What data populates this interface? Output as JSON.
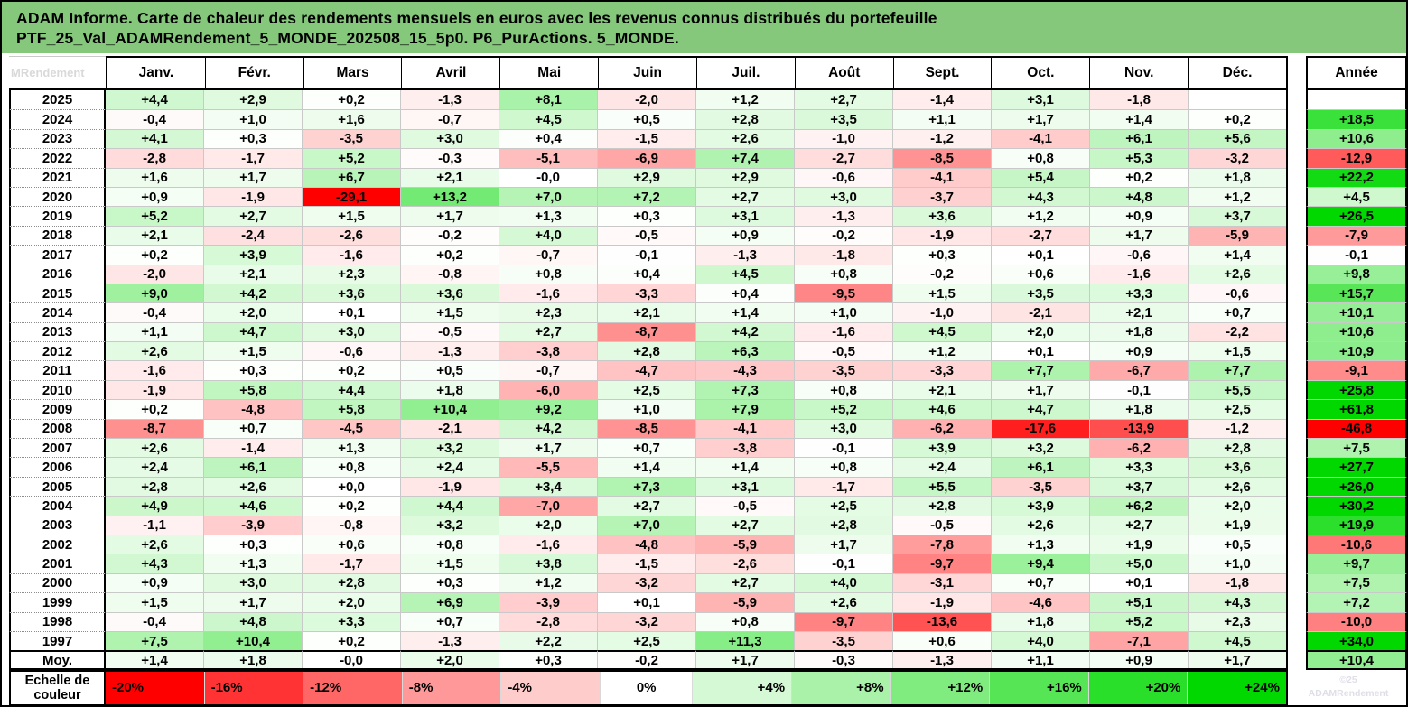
{
  "title": {
    "line1": "ADAM Informe. Carte de chaleur des rendements mensuels en euros avec les revenus connus distribués du portefeuille",
    "line2": "PTF_25_Val_ADAMRendement_5_MONDE_202508_15_5p0. P6_PurActions. 5_MONDE.",
    "bg_color": "#85c87c"
  },
  "corner_watermark": "MRendement",
  "footer_watermark": {
    "line1": "©25",
    "line2": "ADAMRendement"
  },
  "chart_data": {
    "type": "heatmap",
    "title": "ADAM Informe. Carte de chaleur des rendements mensuels en euros avec les revenus connus distribués du portefeuille PTF_25_Val_ADAMRendement_5_MONDE_202508_15_5p0. P6_PurActions. 5_MONDE.",
    "unit": "%",
    "columns": [
      "Janv.",
      "Févr.",
      "Mars",
      "Avril",
      "Mai",
      "Juin",
      "Juil.",
      "Août",
      "Sept.",
      "Oct.",
      "Nov.",
      "Déc."
    ],
    "annual_label": "Année",
    "rows": [
      {
        "label": "2025",
        "values": [
          "+4,4",
          "+2,9",
          "+0,2",
          "-1,3",
          "+8,1",
          "-2,0",
          "+1,2",
          "+2,7",
          "-1,4",
          "+3,1",
          "-1,8",
          ""
        ],
        "annual": ""
      },
      {
        "label": "2024",
        "values": [
          "-0,4",
          "+1,0",
          "+1,6",
          "-0,7",
          "+4,5",
          "+0,5",
          "+2,8",
          "+3,5",
          "+1,1",
          "+1,7",
          "+1,4",
          "+0,2"
        ],
        "annual": "+18,5"
      },
      {
        "label": "2023",
        "values": [
          "+4,1",
          "+0,3",
          "-3,5",
          "+3,0",
          "+0,4",
          "-1,5",
          "+2,6",
          "-1,0",
          "-1,2",
          "-4,1",
          "+6,1",
          "+5,6"
        ],
        "annual": "+10,6"
      },
      {
        "label": "2022",
        "values": [
          "-2,8",
          "-1,7",
          "+5,2",
          "-0,3",
          "-5,1",
          "-6,9",
          "+7,4",
          "-2,7",
          "-8,5",
          "+0,8",
          "+5,3",
          "-3,2"
        ],
        "annual": "-12,9"
      },
      {
        "label": "2021",
        "values": [
          "+1,6",
          "+1,7",
          "+6,7",
          "+2,1",
          "-0,0",
          "+2,9",
          "+2,9",
          "-0,6",
          "-4,1",
          "+5,4",
          "+0,2",
          "+1,8"
        ],
        "annual": "+22,2"
      },
      {
        "label": "2020",
        "values": [
          "+0,9",
          "-1,9",
          "-29,1",
          "+13,2",
          "+7,0",
          "+7,2",
          "+2,7",
          "+3,0",
          "-3,7",
          "+4,3",
          "+4,8",
          "+1,2"
        ],
        "annual": "+4,5"
      },
      {
        "label": "2019",
        "values": [
          "+5,2",
          "+2,7",
          "+1,5",
          "+1,7",
          "+1,3",
          "+0,3",
          "+3,1",
          "-1,3",
          "+3,6",
          "+1,2",
          "+0,9",
          "+3,7"
        ],
        "annual": "+26,5"
      },
      {
        "label": "2018",
        "values": [
          "+2,1",
          "-2,4",
          "-2,6",
          "-0,2",
          "+4,0",
          "-0,5",
          "+0,9",
          "-0,2",
          "-1,9",
          "-2,7",
          "+1,7",
          "-5,9"
        ],
        "annual": "-7,9"
      },
      {
        "label": "2017",
        "values": [
          "+0,2",
          "+3,9",
          "-1,6",
          "+0,2",
          "-0,7",
          "-0,1",
          "-1,3",
          "-1,8",
          "+0,3",
          "+0,1",
          "-0,6",
          "+1,4"
        ],
        "annual": "-0,1"
      },
      {
        "label": "2016",
        "values": [
          "-2,0",
          "+2,1",
          "+2,3",
          "-0,8",
          "+0,8",
          "+0,4",
          "+4,5",
          "+0,8",
          "-0,2",
          "+0,6",
          "-1,6",
          "+2,6"
        ],
        "annual": "+9,8"
      },
      {
        "label": "2015",
        "values": [
          "+9,0",
          "+4,2",
          "+3,6",
          "+3,6",
          "-1,6",
          "-3,3",
          "+0,4",
          "-9,5",
          "+1,5",
          "+3,5",
          "+3,3",
          "-0,6"
        ],
        "annual": "+15,7"
      },
      {
        "label": "2014",
        "values": [
          "-0,4",
          "+2,0",
          "+0,1",
          "+1,5",
          "+2,3",
          "+2,1",
          "+1,4",
          "+1,0",
          "-1,0",
          "-2,1",
          "+2,1",
          "+0,7"
        ],
        "annual": "+10,1"
      },
      {
        "label": "2013",
        "values": [
          "+1,1",
          "+4,7",
          "+3,0",
          "-0,5",
          "+2,7",
          "-8,7",
          "+4,2",
          "-1,6",
          "+4,5",
          "+2,0",
          "+1,8",
          "-2,2"
        ],
        "annual": "+10,6"
      },
      {
        "label": "2012",
        "values": [
          "+2,6",
          "+1,5",
          "-0,6",
          "-1,3",
          "-3,8",
          "+2,8",
          "+6,3",
          "-0,5",
          "+1,2",
          "+0,1",
          "+0,9",
          "+1,5"
        ],
        "annual": "+10,9"
      },
      {
        "label": "2011",
        "values": [
          "-1,6",
          "+0,3",
          "+0,2",
          "+0,5",
          "-0,7",
          "-4,7",
          "-4,3",
          "-3,5",
          "-3,3",
          "+7,7",
          "-6,7",
          "+7,7"
        ],
        "annual": "-9,1"
      },
      {
        "label": "2010",
        "values": [
          "-1,9",
          "+5,8",
          "+4,4",
          "+1,8",
          "-6,0",
          "+2,5",
          "+7,3",
          "+0,8",
          "+2,1",
          "+1,7",
          "-0,1",
          "+5,5"
        ],
        "annual": "+25,8"
      },
      {
        "label": "2009",
        "values": [
          "+0,2",
          "-4,8",
          "+5,8",
          "+10,4",
          "+9,2",
          "+1,0",
          "+7,9",
          "+5,2",
          "+4,6",
          "+4,7",
          "+1,8",
          "+2,5"
        ],
        "annual": "+61,8"
      },
      {
        "label": "2008",
        "values": [
          "-8,7",
          "+0,7",
          "-4,5",
          "-2,1",
          "+4,2",
          "-8,5",
          "-4,1",
          "+3,0",
          "-6,2",
          "-17,6",
          "-13,9",
          "-1,2"
        ],
        "annual": "-46,8"
      },
      {
        "label": "2007",
        "values": [
          "+2,6",
          "-1,4",
          "+1,3",
          "+3,2",
          "+1,7",
          "+0,7",
          "-3,8",
          "-0,1",
          "+3,9",
          "+3,2",
          "-6,2",
          "+2,8"
        ],
        "annual": "+7,5"
      },
      {
        "label": "2006",
        "values": [
          "+2,4",
          "+6,1",
          "+0,8",
          "+2,4",
          "-5,5",
          "+1,4",
          "+1,4",
          "+0,8",
          "+2,4",
          "+6,1",
          "+3,3",
          "+3,6"
        ],
        "annual": "+27,7"
      },
      {
        "label": "2005",
        "values": [
          "+2,8",
          "+2,6",
          "+0,0",
          "-1,9",
          "+3,4",
          "+7,3",
          "+3,1",
          "-1,7",
          "+5,5",
          "-3,5",
          "+3,7",
          "+2,6"
        ],
        "annual": "+26,0"
      },
      {
        "label": "2004",
        "values": [
          "+4,9",
          "+4,6",
          "+0,2",
          "+4,4",
          "-7,0",
          "+2,7",
          "-0,5",
          "+2,5",
          "+2,8",
          "+3,9",
          "+6,2",
          "+2,0"
        ],
        "annual": "+30,2"
      },
      {
        "label": "2003",
        "values": [
          "-1,1",
          "-3,9",
          "-0,8",
          "+3,2",
          "+2,0",
          "+7,0",
          "+2,7",
          "+2,8",
          "-0,5",
          "+2,6",
          "+2,7",
          "+1,9"
        ],
        "annual": "+19,9"
      },
      {
        "label": "2002",
        "values": [
          "+2,6",
          "+0,3",
          "+0,6",
          "+0,8",
          "-1,6",
          "-4,8",
          "-5,9",
          "+1,7",
          "-7,8",
          "+1,3",
          "+1,9",
          "+0,5"
        ],
        "annual": "-10,6"
      },
      {
        "label": "2001",
        "values": [
          "+4,3",
          "+1,3",
          "-1,7",
          "+1,5",
          "+3,8",
          "-1,5",
          "-2,6",
          "-0,1",
          "-9,7",
          "+9,4",
          "+5,0",
          "+1,0"
        ],
        "annual": "+9,7"
      },
      {
        "label": "2000",
        "values": [
          "+0,9",
          "+3,0",
          "+2,8",
          "+0,3",
          "+1,2",
          "-3,2",
          "+2,7",
          "+4,0",
          "-3,1",
          "+0,7",
          "+0,1",
          "-1,8"
        ],
        "annual": "+7,5"
      },
      {
        "label": "1999",
        "values": [
          "+1,5",
          "+1,7",
          "+2,0",
          "+6,9",
          "-3,9",
          "+0,1",
          "-5,9",
          "+2,6",
          "-1,9",
          "-4,6",
          "+5,1",
          "+4,3"
        ],
        "annual": "+7,2"
      },
      {
        "label": "1998",
        "values": [
          "-0,4",
          "+4,8",
          "+3,3",
          "+0,7",
          "-2,8",
          "-3,2",
          "+0,8",
          "-9,7",
          "-13,6",
          "+1,8",
          "+5,2",
          "+2,3"
        ],
        "annual": "-10,0"
      },
      {
        "label": "1997",
        "values": [
          "+7,5",
          "+10,4",
          "+0,2",
          "-1,3",
          "+2,2",
          "+2,5",
          "+11,3",
          "-3,5",
          "+0,6",
          "+4,0",
          "-7,1",
          "+4,5"
        ],
        "annual": "+34,0"
      },
      {
        "label": "Moy.",
        "values": [
          "+1,4",
          "+1,8",
          "-0,0",
          "+2,0",
          "+0,3",
          "-0,2",
          "+1,7",
          "-0,3",
          "-1,3",
          "+1,1",
          "+0,9",
          "+1,7"
        ],
        "annual": "+10,4",
        "is_average": true
      }
    ],
    "color_scale": {
      "label": "Echelle de couleur",
      "negative_limit_pct": -20,
      "positive_limit_pct": 24,
      "negative_color": "#ff0000",
      "zero_color": "#ffffff",
      "positive_color": "#00d800",
      "stops": [
        {
          "label": "-20%",
          "value": -20
        },
        {
          "label": "-16%",
          "value": -16
        },
        {
          "label": "-12%",
          "value": -12
        },
        {
          "label": "-8%",
          "value": -8
        },
        {
          "label": "-4%",
          "value": -4
        },
        {
          "label": "0%",
          "value": 0
        },
        {
          "label": "+4%",
          "value": 4
        },
        {
          "label": "+8%",
          "value": 8
        },
        {
          "label": "+12%",
          "value": 12
        },
        {
          "label": "+16%",
          "value": 16
        },
        {
          "label": "+20%",
          "value": 20
        },
        {
          "label": "+24%",
          "value": 24
        }
      ]
    }
  }
}
